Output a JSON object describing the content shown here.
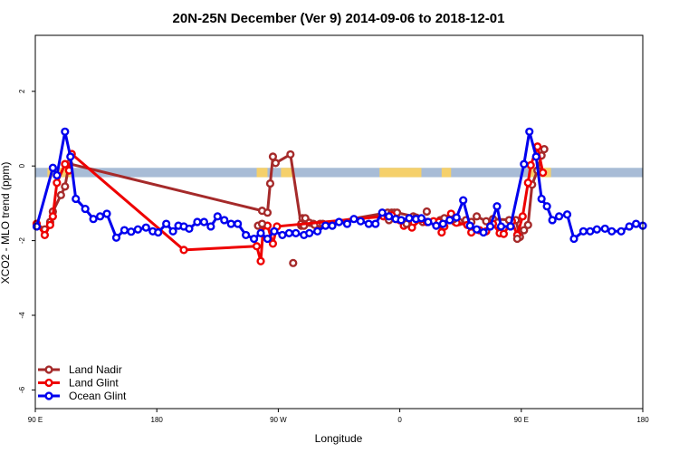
{
  "chart_data": {
    "type": "line",
    "title": "20N-25N December (Ver 9)   2014-09-06 to 2018-12-01",
    "xlabel": "Longitude",
    "ylabel": "XCO2 - MLO trend (ppm)",
    "xlim": [
      90,
      540
    ],
    "ylim": [
      -6.5,
      3.5
    ],
    "x_ticks": [
      {
        "value": 90,
        "label": "90 E"
      },
      {
        "value": 180,
        "label": "180"
      },
      {
        "value": 270,
        "label": "90 W"
      },
      {
        "value": 360,
        "label": "0"
      },
      {
        "value": 450,
        "label": "90 E"
      },
      {
        "value": 540,
        "label": "180"
      }
    ],
    "y_ticks": [
      {
        "value": -6,
        "label": "-6"
      },
      {
        "value": -4,
        "label": "-4"
      },
      {
        "value": -2,
        "label": "-2"
      },
      {
        "value": 0,
        "label": "0"
      },
      {
        "value": 2,
        "label": "2"
      }
    ],
    "land_band": {
      "y_range": [
        -0.3,
        -0.05
      ],
      "ocean_color": "#a8bcd6",
      "land_color": "#f5d06b",
      "land_segments": [
        [
          99,
          103
        ],
        [
          105,
          117
        ],
        [
          254,
          262
        ],
        [
          272,
          281
        ],
        [
          345,
          376
        ],
        [
          391,
          398
        ],
        [
          456,
          472
        ]
      ]
    },
    "legend": {
      "position": "bottom-left",
      "entries": [
        {
          "name": "Land Nadir",
          "color": "#a52a2a"
        },
        {
          "name": "Land Glint",
          "color": "#ee0000"
        },
        {
          "name": "Ocean Glint",
          "color": "#0000ee"
        }
      ]
    },
    "series": [
      {
        "name": "Land Nadir",
        "color": "#a52a2a",
        "line": true,
        "x": [
          91,
          97,
          101,
          103,
          109,
          112,
          115,
          258,
          262,
          264,
          266,
          268,
          279,
          287,
          287,
          288,
          289,
          290,
          293,
          296,
          297,
          301,
          303,
          351,
          354,
          356,
          358,
          370,
          373,
          377,
          390,
          401,
          404,
          409,
          413,
          417,
          424,
          429,
          446,
          449,
          452,
          455,
          458,
          462,
          465,
          467
        ],
        "y": [
          -1.55,
          -1.7,
          -1.5,
          -1.22,
          -0.78,
          -0.55,
          0.06,
          -1.2,
          -1.25,
          -0.47,
          0.25,
          0.08,
          0.31,
          -1.6,
          -1.55,
          -1.4,
          -1.6,
          -1.4,
          -1.52,
          -1.55,
          -1.58,
          -1.55,
          -1.55,
          -1.25,
          -1.25,
          -1.25,
          -1.25,
          -1.35,
          -1.4,
          -1.5,
          -1.45,
          -1.5,
          -1.5,
          -1.45,
          -1.5,
          -1.35,
          -1.48,
          -1.42,
          -1.45,
          -1.9,
          -1.72,
          -1.58,
          -0.5,
          -0.12,
          0.28,
          0.45
        ]
      },
      {
        "name": "Land Glint",
        "color": "#ee0000",
        "line": true,
        "x": [
          91,
          97,
          101,
          103,
          106,
          112,
          115,
          117,
          200,
          254,
          257,
          259,
          262,
          266,
          269,
          348,
          351,
          354,
          357,
          360,
          363,
          366,
          369,
          376,
          380,
          385,
          389,
          391,
          393,
          395,
          398,
          402,
          410,
          413,
          419,
          424,
          429,
          434,
          437,
          443,
          447,
          451,
          455,
          457,
          462,
          466
        ],
        "y": [
          -1.55,
          -1.85,
          -1.58,
          -1.35,
          -0.45,
          0.05,
          -0.12,
          0.32,
          -2.25,
          -2.15,
          -2.55,
          -1.6,
          -1.6,
          -2.08,
          -1.62,
          -1.35,
          -1.38,
          -1.32,
          -1.42,
          -1.45,
          -1.6,
          -1.52,
          -1.65,
          -1.42,
          -1.5,
          -1.48,
          -1.5,
          -1.78,
          -1.62,
          -1.42,
          -1.28,
          -1.52,
          -1.58,
          -1.78,
          -1.72,
          -1.75,
          -1.55,
          -1.8,
          -1.82,
          -1.48,
          -1.85,
          -1.35,
          -0.45,
          0.02,
          0.52,
          -0.18
        ]
      },
      {
        "name": "Land Nadir (extra)",
        "color": "#a52a2a",
        "line": false,
        "x": [
          255,
          258,
          281,
          352,
          365,
          372,
          380,
          393,
          400,
          441,
          447
        ],
        "y": [
          -1.6,
          -1.55,
          -2.6,
          -1.45,
          -1.55,
          -1.38,
          -1.22,
          -1.4,
          -1.42,
          -1.45,
          -1.95
        ]
      },
      {
        "name": "Ocean Glint",
        "color": "#0000ee",
        "line": true,
        "x": [
          91,
          103,
          106,
          112,
          116,
          120,
          127,
          133,
          138,
          143,
          150,
          156,
          161,
          166,
          172,
          177,
          181,
          187,
          192,
          196,
          200,
          204,
          210,
          215,
          220,
          225,
          230,
          235,
          240,
          246,
          252,
          257,
          262,
          267,
          273,
          278,
          283,
          289,
          293,
          299,
          305,
          310,
          315,
          321,
          326,
          331,
          337,
          342,
          347,
          352,
          357,
          361,
          367,
          372,
          376,
          381,
          387,
          392,
          397,
          402,
          407,
          412,
          417,
          422,
          427,
          432,
          435,
          442,
          452,
          456,
          461,
          465,
          469,
          473,
          478,
          484,
          489,
          496,
          501,
          506,
          512,
          517,
          524,
          530,
          535,
          540
        ],
        "y": [
          -1.62,
          -0.05,
          -0.25,
          0.92,
          0.25,
          -0.88,
          -1.15,
          -1.42,
          -1.35,
          -1.28,
          -1.92,
          -1.72,
          -1.76,
          -1.7,
          -1.65,
          -1.75,
          -1.78,
          -1.55,
          -1.75,
          -1.6,
          -1.62,
          -1.68,
          -1.5,
          -1.5,
          -1.62,
          -1.35,
          -1.45,
          -1.55,
          -1.55,
          -1.85,
          -1.95,
          -1.8,
          -1.95,
          -1.75,
          -1.85,
          -1.8,
          -1.8,
          -1.85,
          -1.8,
          -1.75,
          -1.6,
          -1.6,
          -1.5,
          -1.55,
          -1.42,
          -1.48,
          -1.55,
          -1.55,
          -1.25,
          -1.35,
          -1.42,
          -1.45,
          -1.4,
          -1.42,
          -1.4,
          -1.5,
          -1.6,
          -1.55,
          -1.45,
          -1.38,
          -0.92,
          -1.6,
          -1.7,
          -1.78,
          -1.62,
          -1.08,
          -1.62,
          -1.62,
          0.05,
          0.92,
          0.25,
          -0.88,
          -1.08,
          -1.45,
          -1.35,
          -1.3,
          -1.95,
          -1.75,
          -1.75,
          -1.7,
          -1.68,
          -1.75,
          -1.75,
          -1.62,
          -1.55,
          -1.6
        ]
      }
    ]
  }
}
